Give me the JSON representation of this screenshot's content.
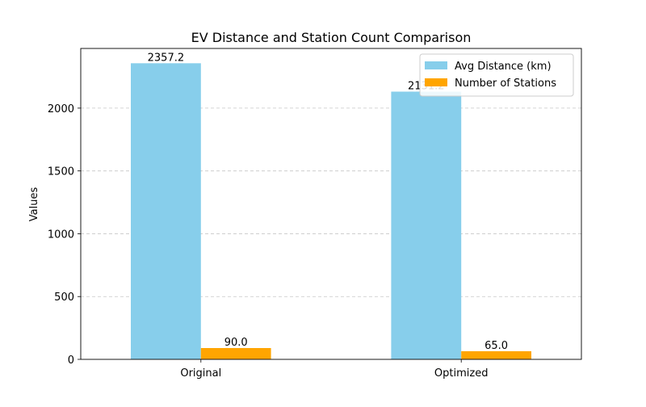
{
  "chart_data": {
    "type": "bar",
    "title": "EV Distance and Station Count Comparison",
    "xlabel": "",
    "ylabel": "Values",
    "categories": [
      "Original",
      "Optimized"
    ],
    "series": [
      {
        "name": "Avg Distance (km)",
        "values": [
          2357.2,
          2131.2
        ],
        "labels": [
          "2357.2",
          "2131.2"
        ],
        "color": "#87ceeb"
      },
      {
        "name": "Number of Stations",
        "values": [
          90.0,
          65.0
        ],
        "labels": [
          "90.0",
          "65.0"
        ],
        "color": "#ffa500"
      }
    ],
    "ylim": [
      0,
      2475
    ],
    "yticks": [
      0,
      500,
      1000,
      1500,
      2000
    ],
    "ytick_labels": [
      "0",
      "500",
      "1000",
      "1500",
      "2000"
    ],
    "grid": "y-dashed",
    "legend_position": "top-right"
  }
}
